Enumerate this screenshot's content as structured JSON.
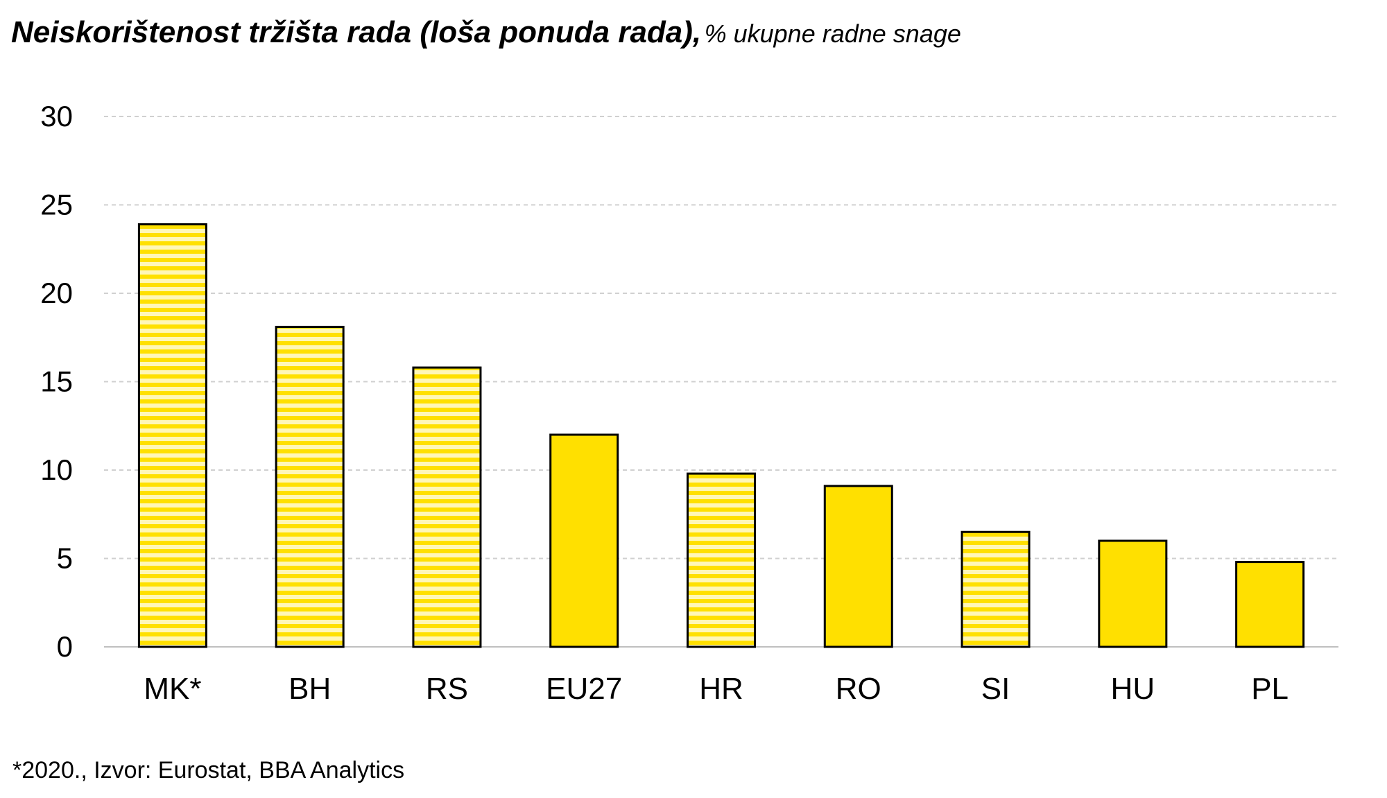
{
  "header": {
    "title": "Neiskorištenost tržišta rada (loša ponuda rada),",
    "subtitle": "% ukupne radne snage"
  },
  "footnote": "*2020., Izvor: Eurostat, BBA Analytics",
  "colors": {
    "accent": "#FFE000",
    "stripe_light": "#FFF7B8",
    "outline": "#000000",
    "grid": "#d0d0d0"
  },
  "chart_data": {
    "type": "bar",
    "categories": [
      "MK*",
      "BH",
      "RS",
      "EU27",
      "HR",
      "RO",
      "SI",
      "HU",
      "PL"
    ],
    "values": [
      23.9,
      18.1,
      15.8,
      12.0,
      9.8,
      9.1,
      6.5,
      6.0,
      4.8
    ],
    "patterns": [
      "striped",
      "striped",
      "striped",
      "solid",
      "striped",
      "solid",
      "striped",
      "solid",
      "solid"
    ],
    "ylim": [
      0,
      30
    ],
    "yticks": [
      0,
      5,
      10,
      15,
      20,
      25,
      30
    ],
    "grid": true,
    "legend": "none"
  }
}
